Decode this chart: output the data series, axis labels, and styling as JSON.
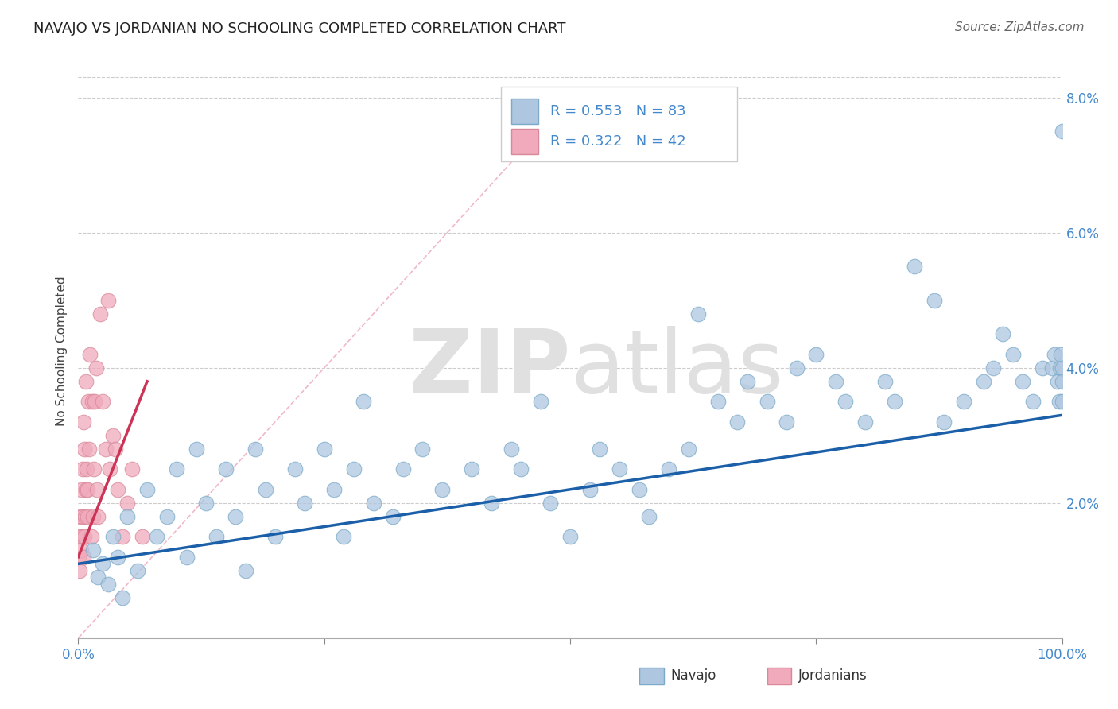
{
  "title": "NAVAJO VS JORDANIAN NO SCHOOLING COMPLETED CORRELATION CHART",
  "source": "Source: ZipAtlas.com",
  "ylabel": "No Schooling Completed",
  "navajo_R": 0.553,
  "navajo_N": 83,
  "jordanian_R": 0.322,
  "jordanian_N": 42,
  "navajo_color": "#aec6e0",
  "navajo_edge_color": "#7aaac8",
  "jordanian_color": "#f0aabb",
  "jordanian_edge_color": "#d88899",
  "navajo_line_color": "#1a5fa8",
  "jordanian_line_color": "#cc3355",
  "diagonal_color": "#f0b8c8",
  "navajo_x": [
    1.5,
    2.0,
    2.5,
    3.0,
    3.5,
    4.0,
    4.5,
    5.0,
    6.0,
    7.0,
    8.0,
    9.0,
    10.0,
    11.0,
    12.0,
    13.0,
    14.0,
    15.0,
    16.0,
    17.0,
    18.0,
    19.0,
    20.0,
    22.0,
    23.0,
    25.0,
    26.0,
    27.0,
    28.0,
    29.0,
    30.0,
    32.0,
    33.0,
    35.0,
    37.0,
    40.0,
    42.0,
    44.0,
    45.0,
    47.0,
    48.0,
    50.0,
    52.0,
    53.0,
    55.0,
    57.0,
    58.0,
    60.0,
    62.0,
    63.0,
    65.0,
    67.0,
    68.0,
    70.0,
    72.0,
    73.0,
    75.0,
    77.0,
    78.0,
    80.0,
    82.0,
    83.0,
    85.0,
    87.0,
    88.0,
    90.0,
    92.0,
    93.0,
    94.0,
    95.0,
    96.0,
    97.0,
    98.0,
    99.0,
    99.2,
    99.5,
    99.7,
    99.8,
    99.9,
    100.0,
    100.0,
    100.0,
    100.0
  ],
  "navajo_y": [
    1.3,
    0.9,
    1.1,
    0.8,
    1.5,
    1.2,
    0.6,
    1.8,
    1.0,
    2.2,
    1.5,
    1.8,
    2.5,
    1.2,
    2.8,
    2.0,
    1.5,
    2.5,
    1.8,
    1.0,
    2.8,
    2.2,
    1.5,
    2.5,
    2.0,
    2.8,
    2.2,
    1.5,
    2.5,
    3.5,
    2.0,
    1.8,
    2.5,
    2.8,
    2.2,
    2.5,
    2.0,
    2.8,
    2.5,
    3.5,
    2.0,
    1.5,
    2.2,
    2.8,
    2.5,
    2.2,
    1.8,
    2.5,
    2.8,
    4.8,
    3.5,
    3.2,
    3.8,
    3.5,
    3.2,
    4.0,
    4.2,
    3.8,
    3.5,
    3.2,
    3.8,
    3.5,
    5.5,
    5.0,
    3.2,
    3.5,
    3.8,
    4.0,
    4.5,
    4.2,
    3.8,
    3.5,
    4.0,
    4.0,
    4.2,
    3.8,
    3.5,
    4.0,
    4.2,
    7.5,
    4.0,
    3.8,
    3.5
  ],
  "jordanian_x": [
    0.05,
    0.1,
    0.15,
    0.2,
    0.25,
    0.3,
    0.35,
    0.4,
    0.45,
    0.5,
    0.55,
    0.6,
    0.65,
    0.7,
    0.75,
    0.8,
    0.85,
    0.9,
    0.95,
    1.0,
    1.1,
    1.2,
    1.3,
    1.4,
    1.5,
    1.6,
    1.7,
    1.8,
    1.9,
    2.0,
    2.2,
    2.5,
    2.8,
    3.0,
    3.2,
    3.5,
    3.8,
    4.0,
    4.5,
    5.0,
    5.5,
    6.5
  ],
  "jordanian_y": [
    1.2,
    1.5,
    1.0,
    1.8,
    1.3,
    2.2,
    1.5,
    1.8,
    2.5,
    1.2,
    3.2,
    2.8,
    1.5,
    1.8,
    2.2,
    3.8,
    2.5,
    1.8,
    2.2,
    3.5,
    2.8,
    4.2,
    1.5,
    3.5,
    1.8,
    2.5,
    3.5,
    4.0,
    2.2,
    1.8,
    4.8,
    3.5,
    2.8,
    5.0,
    2.5,
    3.0,
    2.8,
    2.2,
    1.5,
    2.0,
    2.5,
    1.5
  ],
  "navajo_line_x0": 0,
  "navajo_line_y0": 1.1,
  "navajo_line_x1": 100,
  "navajo_line_y1": 3.3,
  "jord_line_x0": 0,
  "jord_line_y0": 1.2,
  "jord_line_x1": 7.0,
  "jord_line_y1": 3.8,
  "diag_x0": 0,
  "diag_y0": 0,
  "diag_x1": 50,
  "diag_y1": 8.0,
  "xlim": [
    0,
    100
  ],
  "ylim": [
    0,
    8.5
  ],
  "yticks": [
    0,
    2.0,
    4.0,
    6.0,
    8.0
  ],
  "xticks": [
    0,
    25,
    50,
    75,
    100
  ],
  "background_color": "#ffffff",
  "grid_color": "#cccccc",
  "tick_color": "#4488cc",
  "title_fontsize": 13,
  "source_fontsize": 11,
  "tick_fontsize": 12
}
